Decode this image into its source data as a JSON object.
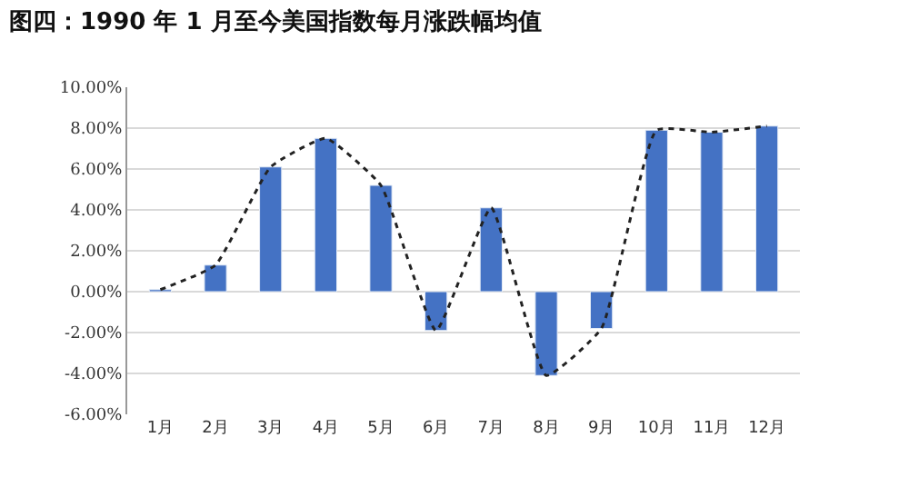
{
  "chart_data": {
    "type": "bar",
    "title": "图四：1990 年 1 月至今美国指数每月涨跌幅均值",
    "categories": [
      "1月",
      "2月",
      "3月",
      "4月",
      "5月",
      "6月",
      "7月",
      "8月",
      "9月",
      "10月",
      "11月",
      "12月"
    ],
    "series": [
      {
        "color": "#4472c4",
        "values": [
          0.1,
          1.3,
          6.1,
          7.5,
          5.2,
          -1.9,
          4.1,
          -4.1,
          -1.8,
          7.9,
          7.8,
          8.1
        ]
      },
      {
        "type": "line",
        "color": "#222222",
        "line_style": "dotted",
        "values": [
          0.1,
          1.3,
          6.1,
          7.5,
          5.2,
          -1.9,
          4.1,
          -4.1,
          -1.8,
          7.9,
          7.8,
          8.1
        ]
      }
    ],
    "ylim": [
      -6,
      10
    ],
    "yticks": [
      {
        "value": -6,
        "label": "-6.00%"
      },
      {
        "value": -4,
        "label": "-4.00%"
      },
      {
        "value": -2,
        "label": "-2.00%"
      },
      {
        "value": 0,
        "label": "0.00%"
      },
      {
        "value": 2,
        "label": "2.00%"
      },
      {
        "value": 4,
        "label": "4.00%"
      },
      {
        "value": 6,
        "label": "6.00%"
      },
      {
        "value": 8,
        "label": "8.00%"
      },
      {
        "value": 10,
        "label": "10.00%"
      }
    ],
    "grid": "y"
  }
}
